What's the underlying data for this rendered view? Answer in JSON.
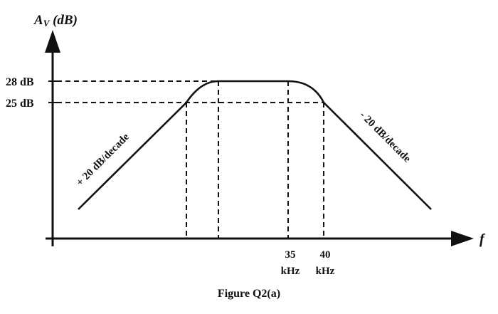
{
  "axes": {
    "y_label_main": "A",
    "y_label_sub": "V",
    "y_label_unit": " (dB)",
    "x_label": "f"
  },
  "y_ticks": [
    {
      "label": "28 dB",
      "value_db": 28
    },
    {
      "label": "25 dB",
      "value_db": 25
    }
  ],
  "x_ticks": [
    {
      "value": "35",
      "unit": "kHz"
    },
    {
      "value": "40",
      "unit": "kHz"
    }
  ],
  "slopes": {
    "rising": "+ 20 dB/decade",
    "falling": "- 20 dB/decade"
  },
  "caption": "Figure Q2(a)",
  "colors": {
    "ink": "#111111",
    "background": "#ffffff"
  }
}
